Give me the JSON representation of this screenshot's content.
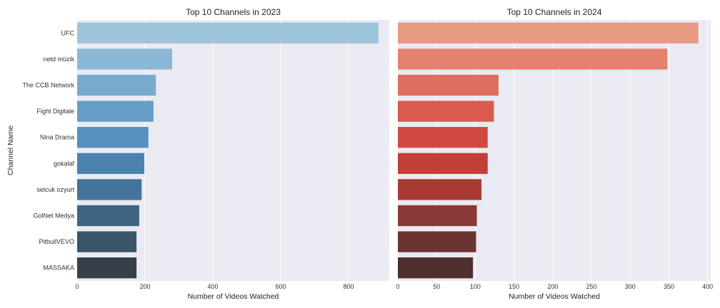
{
  "chart_data": [
    {
      "type": "bar",
      "orientation": "horizontal",
      "title": "Top 10 Channels in 2023",
      "xlabel": "Number of Videos Watched",
      "ylabel": "Channel Name",
      "categories": [
        "UFC",
        "netd müzik",
        "The CCB Network",
        "Fight Digitale",
        "Nina Drama",
        "gokalaf",
        "selcuk ozyurt",
        "GolNet Medya",
        "PitbullVEVO",
        "MASSAKA"
      ],
      "values": [
        888,
        280,
        232,
        225,
        210,
        198,
        190,
        183,
        175,
        175
      ],
      "xlim": [
        0,
        920
      ],
      "xticks": [
        0,
        200,
        400,
        600,
        800
      ],
      "grid": true,
      "palette": "Blues_d",
      "colors": [
        "#9ec4db",
        "#8ab8d6",
        "#78aacf",
        "#669dc7",
        "#5590c0",
        "#4a82b0",
        "#44739a",
        "#3f6482",
        "#3a546a",
        "#353f48"
      ]
    },
    {
      "type": "bar",
      "orientation": "horizontal",
      "title": "Top 10 Channels in 2024",
      "xlabel": "Number of Videos Watched",
      "ylabel": "",
      "categories": [
        "",
        "",
        "",
        "",
        "",
        "",
        "",
        "",
        "",
        ""
      ],
      "values": [
        388,
        348,
        130,
        124,
        116,
        116,
        108,
        102,
        101,
        97
      ],
      "xlim": [
        0,
        404
      ],
      "xticks": [
        0,
        50,
        100,
        150,
        200,
        250,
        300,
        350,
        400
      ],
      "grid": true,
      "palette": "Reds_d",
      "colors": [
        "#e89a82",
        "#e4826f",
        "#df6e5e",
        "#d85b4e",
        "#cf4a40",
        "#c23e38",
        "#a83a33",
        "#8a3835",
        "#6b3433",
        "#4f2e2d"
      ]
    }
  ]
}
